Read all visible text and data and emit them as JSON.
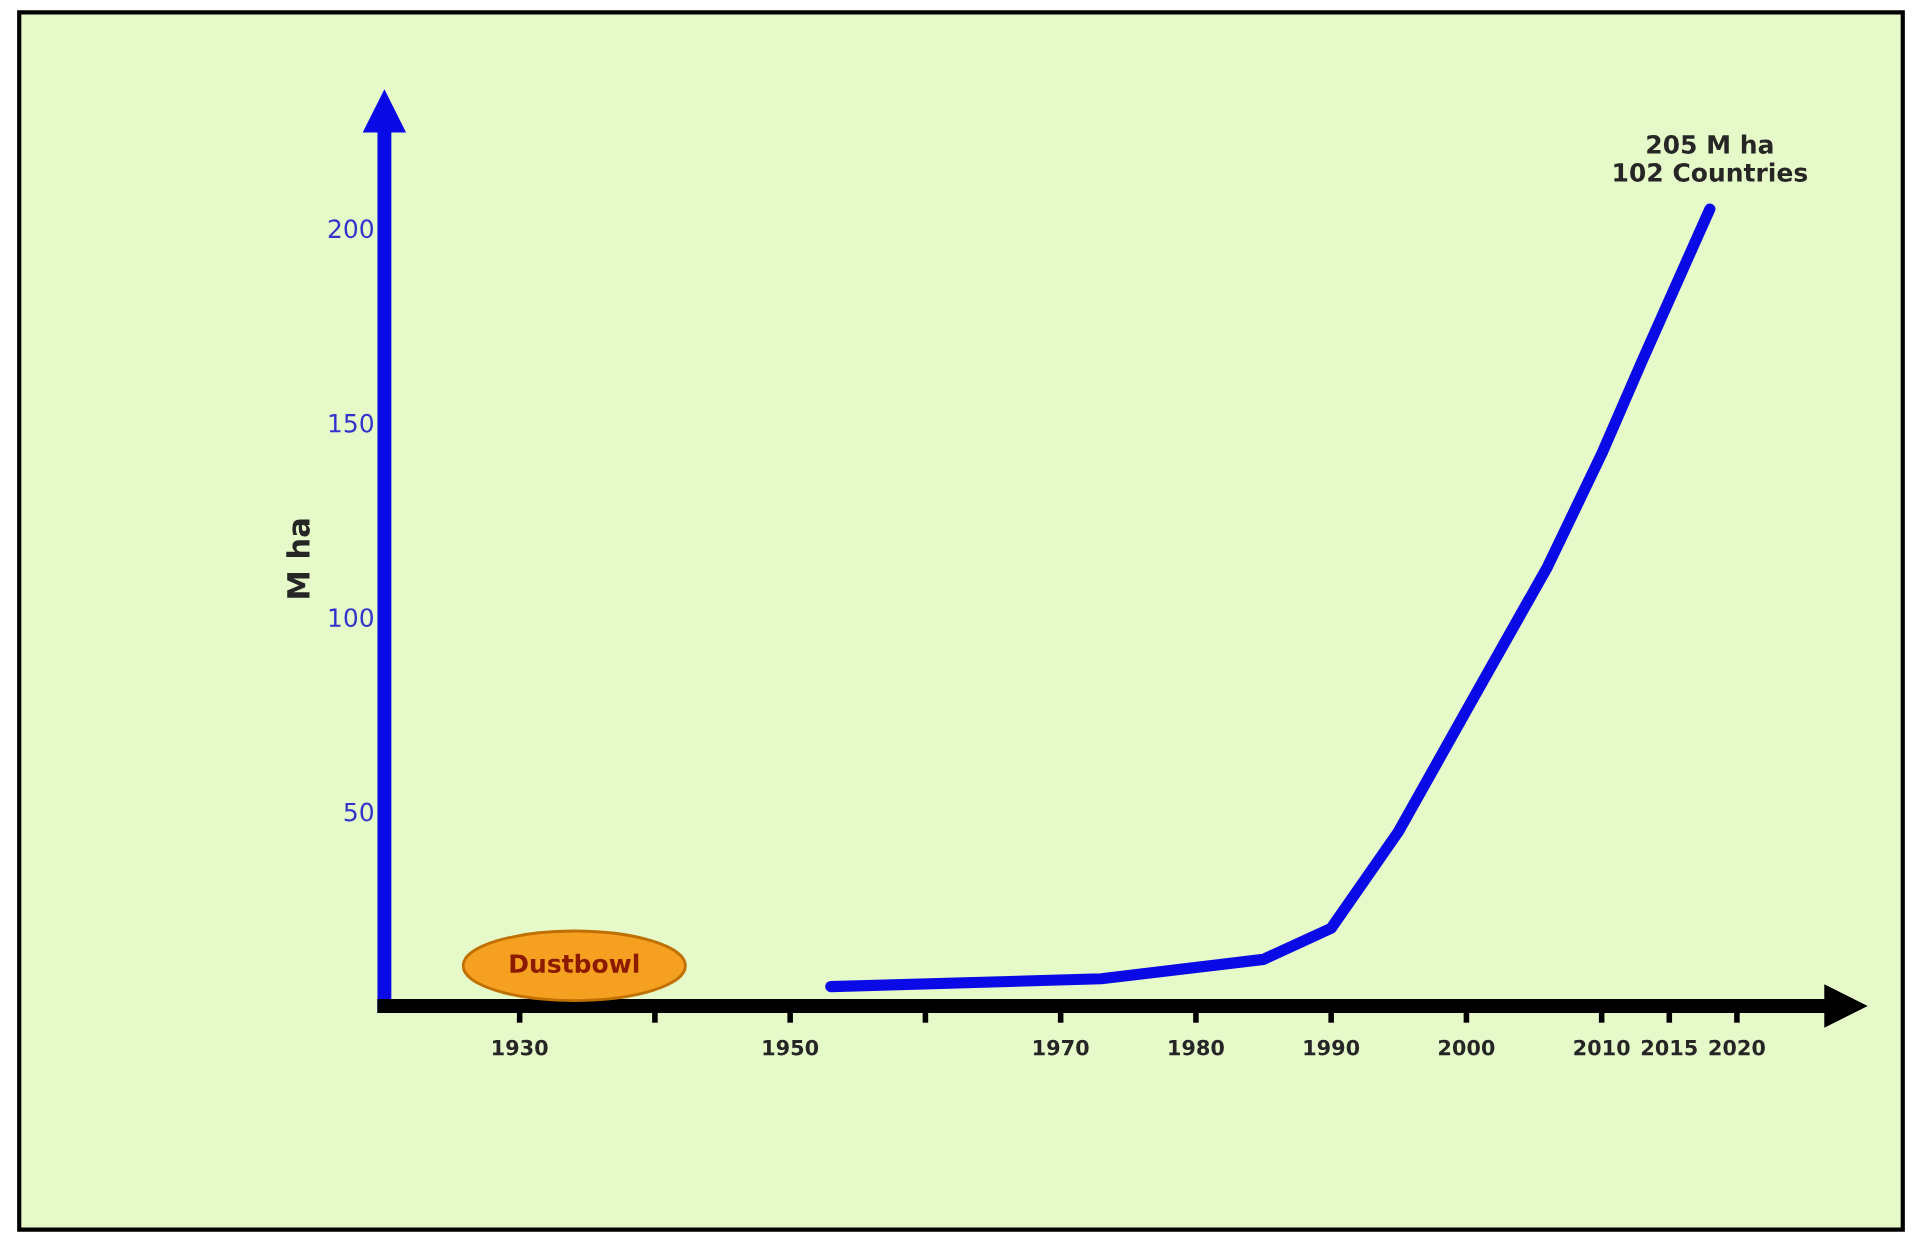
{
  "chart_data": {
    "type": "line",
    "ylabel": "M ha",
    "x": [
      1953,
      1973,
      1985,
      1990,
      1995,
      2000,
      2006,
      2010,
      2013,
      2018
    ],
    "series": [
      {
        "color": "#0a0ae6",
        "values": [
          5,
          7,
          12,
          20,
          45,
          76,
          113,
          142,
          166,
          205
        ]
      }
    ],
    "xlim": [
      1920,
      2028
    ],
    "ylim": [
      0,
      230
    ],
    "xticks": [
      1930,
      {
        "value": 1940,
        "label": null
      },
      1950,
      {
        "value": 1960,
        "label": null
      },
      1970,
      1980,
      1990,
      2000,
      2010,
      2015,
      2020
    ],
    "yticks": [
      50,
      100,
      150,
      200
    ],
    "annotations": [
      "Dustbowl",
      {
        "text": "205 M ha\n102 Countries",
        "x": 2018,
        "y": 205
      }
    ],
    "grid": false,
    "legend": false,
    "marker": "none",
    "line_style": "solid"
  }
}
